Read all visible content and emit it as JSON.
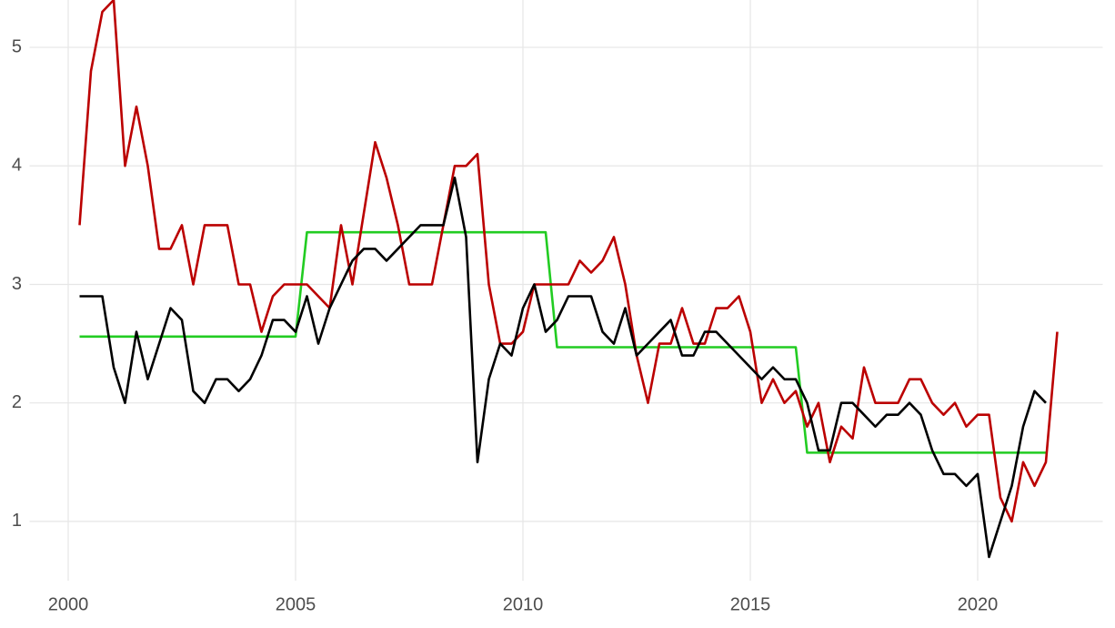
{
  "chart_data": {
    "type": "line",
    "x": [
      2000.25,
      2000.5,
      2000.75,
      2001,
      2001.25,
      2001.5,
      2001.75,
      2002,
      2002.25,
      2002.5,
      2002.75,
      2003,
      2003.25,
      2003.5,
      2003.75,
      2004,
      2004.25,
      2004.5,
      2004.75,
      2005,
      2005.25,
      2005.5,
      2005.75,
      2006,
      2006.25,
      2006.5,
      2006.75,
      2007,
      2007.25,
      2007.5,
      2007.75,
      2008,
      2008.25,
      2008.5,
      2008.75,
      2009,
      2009.25,
      2009.5,
      2009.75,
      2010,
      2010.25,
      2010.5,
      2010.75,
      2011,
      2011.25,
      2011.5,
      2011.75,
      2012,
      2012.25,
      2012.5,
      2012.75,
      2013,
      2013.25,
      2013.5,
      2013.75,
      2014,
      2014.25,
      2014.5,
      2014.75,
      2015,
      2015.25,
      2015.5,
      2015.75,
      2016,
      2016.25,
      2016.5,
      2016.75,
      2017,
      2017.25,
      2017.5,
      2017.75,
      2018,
      2018.25,
      2018.5,
      2018.75,
      2019,
      2019.25,
      2019.5,
      2019.75,
      2020,
      2020.25,
      2020.5,
      2020.75,
      2021,
      2021.25,
      2021.5,
      2021.75
    ],
    "series": [
      {
        "color": "#bb0000",
        "values": [
          3.5,
          4.8,
          5.3,
          5.4,
          4.0,
          4.5,
          4.0,
          3.3,
          3.3,
          3.5,
          3.0,
          3.5,
          3.5,
          3.5,
          3.0,
          3.0,
          2.6,
          2.9,
          3.0,
          3.0,
          3.0,
          2.9,
          2.8,
          3.5,
          3.0,
          3.6,
          4.2,
          3.9,
          3.5,
          3.0,
          3.0,
          3.0,
          3.5,
          4.0,
          4.0,
          4.1,
          3.0,
          2.5,
          2.5,
          2.6,
          3.0,
          3.0,
          3.0,
          3.0,
          3.2,
          3.1,
          3.2,
          3.4,
          3.0,
          2.4,
          2.0,
          2.5,
          2.5,
          2.8,
          2.5,
          2.5,
          2.8,
          2.8,
          2.9,
          2.6,
          2.0,
          2.2,
          2.0,
          2.1,
          1.8,
          2.0,
          1.5,
          1.8,
          1.7,
          2.3,
          2.0,
          2.0,
          2.0,
          2.2,
          2.2,
          2.0,
          1.9,
          2.0,
          1.8,
          1.9,
          1.9,
          1.2,
          1.0,
          1.5,
          1.3,
          1.5,
          2.6
        ]
      },
      {
        "color": "#000000",
        "values": [
          2.9,
          2.9,
          2.9,
          2.3,
          2.0,
          2.6,
          2.2,
          2.5,
          2.8,
          2.7,
          2.1,
          2.0,
          2.2,
          2.2,
          2.1,
          2.2,
          2.4,
          2.7,
          2.7,
          2.6,
          2.9,
          2.5,
          2.8,
          3.0,
          3.2,
          3.3,
          3.3,
          3.2,
          3.3,
          3.4,
          3.5,
          3.5,
          3.5,
          3.9,
          3.4,
          1.5,
          2.2,
          2.5,
          2.4,
          2.8,
          3.0,
          2.6,
          2.7,
          2.9,
          2.9,
          2.9,
          2.6,
          2.5,
          2.8,
          2.4,
          2.5,
          2.6,
          2.7,
          2.4,
          2.4,
          2.6,
          2.6,
          2.5,
          2.4,
          2.3,
          2.2,
          2.3,
          2.2,
          2.2,
          2.0,
          1.6,
          1.6,
          2.0,
          2.0,
          1.9,
          1.8,
          1.9,
          1.9,
          2.0,
          1.9,
          1.6,
          1.4,
          1.4,
          1.3,
          1.4,
          0.7,
          1.0,
          1.3,
          1.8,
          2.1,
          2.0,
          null
        ]
      },
      {
        "color": "#22cc22",
        "x": [
          2000.25,
          2005,
          2005.25,
          2010.5,
          2010.75,
          2016,
          2016.25,
          2021.5
        ],
        "values": [
          2.56,
          2.56,
          3.44,
          3.44,
          2.47,
          2.47,
          1.58,
          1.58
        ]
      }
    ],
    "xlim": [
      1999.15,
      2022.75
    ],
    "ylim": [
      0.5,
      5.4
    ],
    "xticks": [
      2000,
      2005,
      2010,
      2015,
      2020
    ],
    "yticks": [
      1,
      2,
      3,
      4,
      5
    ],
    "grid": true
  }
}
